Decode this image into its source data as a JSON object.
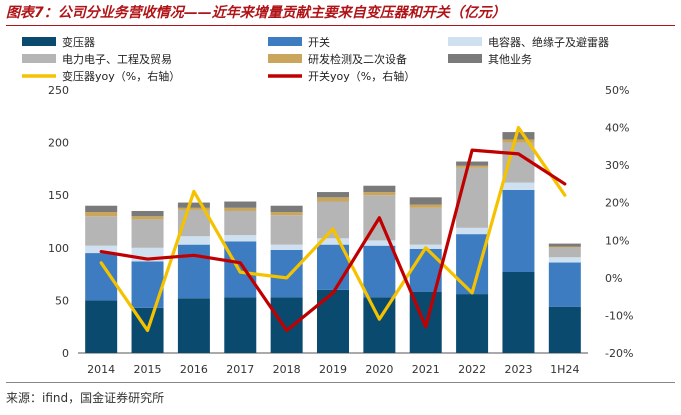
{
  "title": "图表7：公司分业务营收情况——近年来增量贡献主要来自变压器和开关（亿元）",
  "source": "来源：ifind，国金证券研究所",
  "colors": {
    "transformer": "#0b4a6f",
    "switch": "#3d7cc0",
    "capacitor": "#cfe1f1",
    "power_electronics": "#b5b5b5",
    "testing": "#c9a65b",
    "other": "#7a7a7a",
    "transformer_yoy": "#f5c200",
    "switch_yoy": "#c00000"
  },
  "chart_data": {
    "type": "bar",
    "stacked": true,
    "categories": [
      "2014",
      "2015",
      "2016",
      "2017",
      "2018",
      "2019",
      "2020",
      "2021",
      "2022",
      "2023",
      "1H24"
    ],
    "series": [
      {
        "name": "变压器",
        "key": "transformer",
        "values": [
          50,
          43,
          52,
          53,
          53,
          60,
          53,
          58,
          56,
          77,
          44
        ]
      },
      {
        "name": "开关",
        "key": "switch",
        "values": [
          45,
          44,
          51,
          53,
          45,
          43,
          49,
          41,
          57,
          78,
          42
        ]
      },
      {
        "name": "电容器、绝缘子及避雷器",
        "key": "capacitor",
        "values": [
          7,
          13,
          8,
          6,
          5,
          6,
          5,
          4,
          6,
          7,
          5
        ]
      },
      {
        "name": "电力电子、工程及贸易",
        "key": "power_electronics",
        "values": [
          28,
          27,
          25,
          23,
          28,
          35,
          43,
          35,
          57,
          38,
          9
        ]
      },
      {
        "name": "研发检测及二次设备",
        "key": "testing",
        "values": [
          4,
          3,
          2,
          3,
          3,
          4,
          3,
          3,
          2,
          3,
          1
        ]
      },
      {
        "name": "其他业务",
        "key": "other",
        "values": [
          6,
          5,
          5,
          6,
          6,
          5,
          6,
          7,
          4,
          7,
          3
        ]
      }
    ],
    "line_series": [
      {
        "name": "变压器yoy（%，右轴）",
        "key": "transformer_yoy",
        "values": [
          4,
          -14,
          23,
          1.5,
          0,
          13,
          -11,
          8,
          -4,
          40,
          22
        ]
      },
      {
        "name": "开关yoy（%，右轴）",
        "key": "switch_yoy",
        "values": [
          7,
          5,
          6,
          4,
          -14,
          -4,
          16,
          -13,
          34,
          33,
          25
        ]
      }
    ],
    "ylim": [
      0,
      250
    ],
    "yticks": [
      0,
      50,
      100,
      150,
      200,
      250
    ],
    "y2lim": [
      -20,
      50
    ],
    "y2ticks": [
      "-20%",
      "-10%",
      "0%",
      "10%",
      "20%",
      "30%",
      "40%",
      "50%"
    ],
    "grid": false,
    "legend_position": "top"
  }
}
